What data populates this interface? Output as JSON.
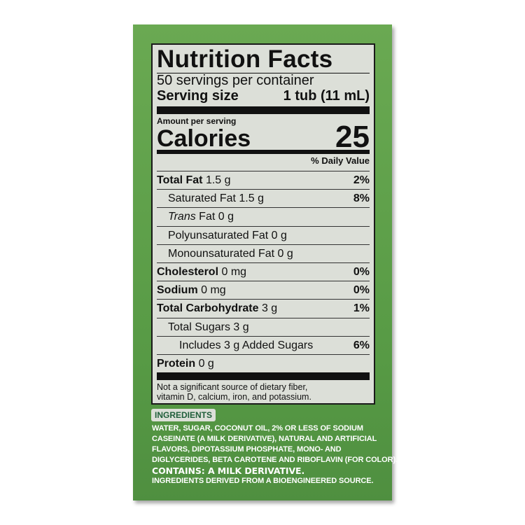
{
  "title": "Nutrition Facts",
  "servings": "50 servings per container",
  "serving_size": {
    "label": "Serving size",
    "value": "1 tub (11 mL)"
  },
  "amount_per_serving": "Amount per serving",
  "calories": {
    "label": "Calories",
    "value": "25"
  },
  "daily_value_header": "% Daily Value",
  "rows": [
    {
      "name": "Total Fat",
      "amount": "1.5 g",
      "dv": "2%",
      "bold": true,
      "indent": 0
    },
    {
      "name": "Saturated Fat",
      "amount": "1.5 g",
      "dv": "8%",
      "bold": false,
      "indent": 1
    },
    {
      "name": "Trans",
      "suffix": "Fat",
      "amount": "0 g",
      "dv": "",
      "bold": false,
      "indent": 1
    },
    {
      "name": "Polyunsaturated Fat",
      "amount": "0 g",
      "dv": "",
      "bold": false,
      "indent": 1
    },
    {
      "name": "Monounsaturated Fat",
      "amount": "0 g",
      "dv": "",
      "bold": false,
      "indent": 1
    },
    {
      "name": "Cholesterol",
      "amount": "0 mg",
      "dv": "0%",
      "bold": true,
      "indent": 0
    },
    {
      "name": "Sodium",
      "amount": "0 mg",
      "dv": "0%",
      "bold": true,
      "indent": 0
    },
    {
      "name": "Total Carbohydrate",
      "amount": "3 g",
      "dv": "1%",
      "bold": true,
      "indent": 0
    },
    {
      "name": "Total Sugars",
      "amount": "3 g",
      "dv": "",
      "bold": false,
      "indent": 1
    },
    {
      "name": "Includes 3 g Added Sugars",
      "amount": "",
      "dv": "6%",
      "bold": false,
      "indent": 2
    },
    {
      "name": "Protein",
      "amount": "0 g",
      "dv": "",
      "bold": true,
      "indent": 0
    }
  ],
  "footnote": [
    "Not a significant source of dietary fiber,",
    "vitamin D, calcium, iron, and potassium."
  ],
  "ingredients": {
    "heading": "INGREDIENTS",
    "lines": [
      "WATER, SUGAR, COCONUT OIL, 2% OR LESS OF SODIUM",
      "CASEINATE (A MILK DERIVATIVE), NATURAL AND ARTIFICIAL",
      "FLAVORS, DIPOTASSIUM PHOSPHATE, MONO- AND",
      "DIGLYCERIDES, BETA CAROTENE AND RIBOFLAVIN (FOR COLOR)."
    ],
    "contains": "CONTAINS: A MILK DERIVATIVE.",
    "bioengineered": "INGREDIENTS DERIVED FROM A BIOENGINEERED SOURCE."
  }
}
